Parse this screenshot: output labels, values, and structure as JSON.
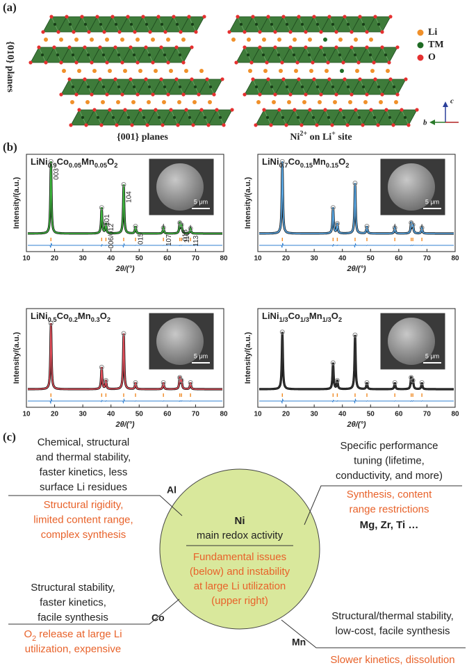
{
  "panel_a": {
    "label": "(a)",
    "legend": [
      "Li",
      "TM",
      "O"
    ],
    "side_label": "{010} planes",
    "left_caption": "{001} planes",
    "right_caption": [
      "Ni",
      "2+",
      " on Li",
      "+",
      " site"
    ],
    "axes": [
      "c",
      "b"
    ]
  },
  "panel_b": {
    "label": "(b)",
    "x_label": "2θ/(°)",
    "y_label": "Intensity/(a.u.)",
    "scale_bar": "5 μm",
    "xlim": [
      10,
      80
    ],
    "xticks": [
      10,
      20,
      30,
      40,
      50,
      60,
      70,
      80
    ],
    "ylim": [
      0,
      110
    ],
    "plots": [
      {
        "formula": [
          "LiNi",
          "0.9",
          "Co",
          "0.05",
          "Mn",
          "0.05",
          "O",
          "2"
        ],
        "color": "#3fb83f",
        "peaks": [
          {
            "x": 18.7,
            "intensity": 100,
            "label": "003"
          },
          {
            "x": 36.7,
            "intensity": 36,
            "label": "101"
          },
          {
            "x": 38.2,
            "intensity": 14,
            "label": "006/012"
          },
          {
            "x": 44.5,
            "intensity": 68,
            "label": "104"
          },
          {
            "x": 48.7,
            "intensity": 10,
            "label": "015"
          },
          {
            "x": 58.6,
            "intensity": 8,
            "label": "107"
          },
          {
            "x": 64.4,
            "intensity": 15,
            "label": "018"
          },
          {
            "x": 65.0,
            "intensity": 12,
            "label": "110"
          },
          {
            "x": 68.2,
            "intensity": 7,
            "label": "113"
          }
        ]
      },
      {
        "formula": [
          "LiNi",
          "0.7",
          "Co",
          "0.15",
          "Mn",
          "0.15",
          "O",
          "2"
        ],
        "color": "#5aaae8",
        "peaks": [
          {
            "x": 18.7,
            "intensity": 100
          },
          {
            "x": 36.7,
            "intensity": 36
          },
          {
            "x": 38.2,
            "intensity": 14
          },
          {
            "x": 44.5,
            "intensity": 70
          },
          {
            "x": 48.7,
            "intensity": 10
          },
          {
            "x": 58.6,
            "intensity": 8
          },
          {
            "x": 64.4,
            "intensity": 15
          },
          {
            "x": 65.0,
            "intensity": 12
          },
          {
            "x": 68.2,
            "intensity": 8
          }
        ]
      },
      {
        "formula": [
          "LiNi",
          "0.5",
          "Co",
          "0.2",
          "Mn",
          "0.3",
          "O",
          "2"
        ],
        "color": "#e4505c",
        "peaks": [
          {
            "x": 18.7,
            "intensity": 90
          },
          {
            "x": 36.7,
            "intensity": 30
          },
          {
            "x": 38.2,
            "intensity": 12
          },
          {
            "x": 44.5,
            "intensity": 76
          },
          {
            "x": 48.7,
            "intensity": 9
          },
          {
            "x": 58.6,
            "intensity": 9
          },
          {
            "x": 64.4,
            "intensity": 16
          },
          {
            "x": 65.0,
            "intensity": 12
          },
          {
            "x": 68.2,
            "intensity": 9
          }
        ]
      },
      {
        "formula": [
          "LiNi",
          "1/3",
          "Co",
          "1/3",
          "Mn",
          "1/3",
          "O",
          "2"
        ],
        "color": "#333333",
        "peaks": [
          {
            "x": 18.7,
            "intensity": 78
          },
          {
            "x": 36.7,
            "intensity": 36
          },
          {
            "x": 38.2,
            "intensity": 12
          },
          {
            "x": 44.5,
            "intensity": 74
          },
          {
            "x": 48.7,
            "intensity": 9
          },
          {
            "x": 58.6,
            "intensity": 9
          },
          {
            "x": 64.4,
            "intensity": 16
          },
          {
            "x": 65.0,
            "intensity": 12
          },
          {
            "x": 68.2,
            "intensity": 9
          }
        ]
      }
    ]
  },
  "panel_c": {
    "label": "(c)",
    "center": {
      "title": "Ni",
      "subtitle": "main redox activity",
      "issues": [
        "Fundamental issues",
        "(below) and instability",
        "at large Li utilization",
        "(upper right)"
      ]
    },
    "al": {
      "element": "Al",
      "benefits": [
        "Chemical, structural",
        "and thermal stability,",
        "faster kinetics, less",
        "surface Li residues"
      ],
      "drawbacks": [
        "Structural rigidity,",
        "limited content range,",
        "complex synthesis"
      ]
    },
    "others": {
      "benefits": [
        "Specific performance",
        "tuning (lifetime,",
        "conductivity, and more)"
      ],
      "drawbacks": [
        "Synthesis, content",
        "range restrictions"
      ],
      "elements": "Mg, Zr, Ti …"
    },
    "co": {
      "element": "Co",
      "benefits": [
        "Structural stability,",
        "faster kinetics,",
        "facile synthesis"
      ],
      "drawbacks": [
        [
          "O",
          "2",
          " release at large Li"
        ],
        "utilization, expensive"
      ]
    },
    "mn": {
      "element": "Mn",
      "benefits": [
        "Structural/thermal stability,",
        "low-cost, facile synthesis"
      ],
      "drawbacks": [
        "Slower kinetics, dissolution"
      ]
    }
  }
}
